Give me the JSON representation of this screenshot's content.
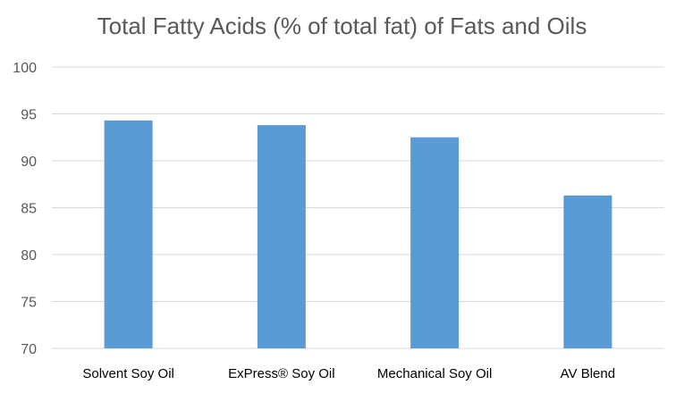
{
  "chart_data": {
    "type": "bar",
    "title": "Total Fatty Acids (% of total fat) of Fats and Oils",
    "xlabel": "",
    "ylabel": "",
    "categories": [
      "Solvent Soy Oil",
      "ExPress® Soy Oil",
      "Mechanical Soy Oil",
      "AV Blend"
    ],
    "values": [
      94.3,
      93.8,
      92.5,
      86.3
    ],
    "ylim": [
      70,
      100
    ],
    "yticks": [
      "70",
      "75",
      "80",
      "85",
      "90",
      "95",
      "100"
    ],
    "grid": true,
    "bar_color": "#5b9bd5"
  }
}
